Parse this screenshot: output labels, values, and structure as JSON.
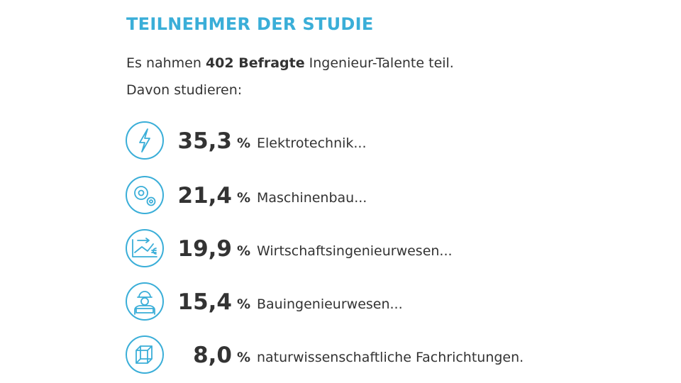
{
  "header": {
    "title": "TEILNEHMER DER STUDIE"
  },
  "intro": {
    "before": "Es nahmen ",
    "highlight": "402 Befragte",
    "after": " Ingenieur-Talente teil.",
    "line2": "Davon studieren:"
  },
  "items": [
    {
      "value": "35,3",
      "unit": "%",
      "label": "Elektrotechnik..."
    },
    {
      "value": "21,4",
      "unit": "%",
      "label": "Maschinenbau..."
    },
    {
      "value": "19,9",
      "unit": "%",
      "label": "Wirtschaftsingenieurwesen..."
    },
    {
      "value": "15,4",
      "unit": "%",
      "label": "Bauingenieurwesen..."
    },
    {
      "value": "8,0",
      "unit": "%",
      "label": "naturwissenschaftliche Fachrichtungen."
    }
  ]
}
